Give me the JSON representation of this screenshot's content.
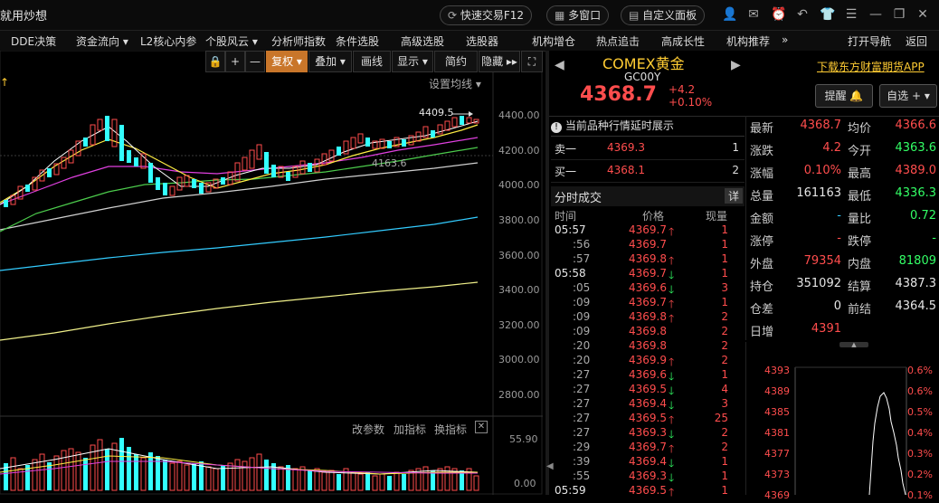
{
  "titlebar": {
    "app_title": "就用炒想",
    "quick_trade": "快速交易F12",
    "multi_window": "多窗口",
    "custom_panel": "自定义面板"
  },
  "menu": [
    "DDE决策",
    "资金流向 ▾",
    "L2核心内参",
    "个股风云 ▾",
    "分析师指数",
    "条件选股",
    "高级选股",
    "选股器",
    "机构增仓",
    "热点追击",
    "高成长性",
    "机构推荐",
    "»",
    "打开导航",
    "返回"
  ],
  "chart": {
    "toolbar": [
      "复权 ▾",
      "叠加 ▾",
      "画线",
      "显示 ▾",
      "简约",
      "隐藏 ▸▸"
    ],
    "setup_ma": "设置均线 ▾",
    "high_label": "4409.5",
    "mid_label": "4163.6",
    "price_ticks": [
      "4400.00",
      "4200.00",
      "4000.00",
      "3800.00",
      "3600.00",
      "3400.00",
      "3200.00",
      "3000.00",
      "2800.00"
    ],
    "bottom_links": [
      "改参数",
      "加指标",
      "换指标"
    ],
    "vol_ticks": [
      "55.90",
      "0.00"
    ]
  },
  "chart_data": {
    "type": "candlestick",
    "title": "",
    "yaxis_ticks": [
      4400,
      4200,
      4000,
      3800,
      3600,
      3400,
      3200,
      3000,
      2800
    ],
    "annotations": [
      {
        "text": "4409.5"
      },
      {
        "text": "4163.6"
      }
    ],
    "volume_axis": [
      55.9,
      0.0
    ]
  },
  "quote": {
    "name": "COMEX黄金",
    "code": "GC00Y",
    "last": "4368.7",
    "change": "+4.2",
    "pct": "+0.10%",
    "download_link": "下载东方财富期货APP",
    "remind_btn": "提醒 🔔",
    "watch_btn": "自选 + ▾"
  },
  "orderbook": {
    "notice": "当前品种行情延时展示",
    "sell1_label": "卖一",
    "sell1_price": "4369.3",
    "sell1_vol": "1",
    "buy1_label": "买一",
    "buy1_price": "4368.1",
    "buy1_vol": "2"
  },
  "ticks": {
    "title": "分时成交",
    "detail": "详",
    "headers": [
      "时间",
      "价格",
      "现量"
    ],
    "rows": [
      {
        "t": "05:57",
        "p": "4369.7",
        "d": "up",
        "v": "1",
        "bold": true
      },
      {
        "t": ":56",
        "p": "4369.7",
        "d": "",
        "v": "1"
      },
      {
        "t": ":57",
        "p": "4369.8",
        "d": "up",
        "v": "1"
      },
      {
        "t": "05:58",
        "p": "4369.7",
        "d": "down",
        "v": "1",
        "bold": true
      },
      {
        "t": ":05",
        "p": "4369.6",
        "d": "down",
        "v": "3"
      },
      {
        "t": ":09",
        "p": "4369.7",
        "d": "up",
        "v": "1"
      },
      {
        "t": ":09",
        "p": "4369.8",
        "d": "up",
        "v": "2"
      },
      {
        "t": ":09",
        "p": "4369.8",
        "d": "",
        "v": "2"
      },
      {
        "t": ":20",
        "p": "4369.8",
        "d": "",
        "v": "2"
      },
      {
        "t": ":20",
        "p": "4369.9",
        "d": "up",
        "v": "2"
      },
      {
        "t": ":27",
        "p": "4369.6",
        "d": "down",
        "v": "1"
      },
      {
        "t": ":27",
        "p": "4369.5",
        "d": "down",
        "v": "4"
      },
      {
        "t": ":27",
        "p": "4369.4",
        "d": "down",
        "v": "3"
      },
      {
        "t": ":27",
        "p": "4369.5",
        "d": "up",
        "v": "25"
      },
      {
        "t": ":27",
        "p": "4369.3",
        "d": "down",
        "v": "2"
      },
      {
        "t": ":29",
        "p": "4369.7",
        "d": "up",
        "v": "2"
      },
      {
        "t": ":39",
        "p": "4369.4",
        "d": "down",
        "v": "1"
      },
      {
        "t": ":55",
        "p": "4369.3",
        "d": "down",
        "v": "1"
      },
      {
        "t": "05:59",
        "p": "4369.5",
        "d": "up",
        "v": "1",
        "bold": true
      }
    ]
  },
  "stats": [
    {
      "l": "最新",
      "lv": "4368.7",
      "lc": "red",
      "r": "均价",
      "rv": "4366.6",
      "rc": "red"
    },
    {
      "l": "涨跌",
      "lv": "4.2",
      "lc": "red",
      "r": "今开",
      "rv": "4363.6",
      "rc": "green"
    },
    {
      "l": "涨幅",
      "lv": "0.10%",
      "lc": "red",
      "r": "最高",
      "rv": "4389.0",
      "rc": "red"
    },
    {
      "l": "总量",
      "lv": "161163",
      "lc": "white",
      "r": "最低",
      "rv": "4336.3",
      "rc": "green"
    },
    {
      "l": "金额",
      "lv": "-",
      "lc": "cyan",
      "r": "量比",
      "rv": "0.72",
      "rc": "green"
    },
    {
      "l": "涨停",
      "lv": "-",
      "lc": "red",
      "r": "跌停",
      "rv": "-",
      "rc": "green"
    },
    {
      "l": "外盘",
      "lv": "79354",
      "lc": "red",
      "r": "内盘",
      "rv": "81809",
      "rc": "green"
    },
    {
      "l": "持仓",
      "lv": "351092",
      "lc": "white",
      "r": "结算",
      "rv": "4387.3",
      "rc": "white"
    },
    {
      "l": "仓差",
      "lv": "0",
      "lc": "white",
      "r": "前结",
      "rv": "4364.5",
      "rc": "white"
    },
    {
      "l": "日增",
      "lv": "4391",
      "lc": "red",
      "r": "",
      "rv": "",
      "rc": "white"
    }
  ],
  "mini": {
    "left_ticks": [
      "4393",
      "4389",
      "4385",
      "4381",
      "4377",
      "4373",
      "4369"
    ],
    "right_ticks": [
      "0.6%",
      "0.6%",
      "0.5%",
      "0.4%",
      "0.3%",
      "0.2%",
      "0.1%"
    ]
  }
}
